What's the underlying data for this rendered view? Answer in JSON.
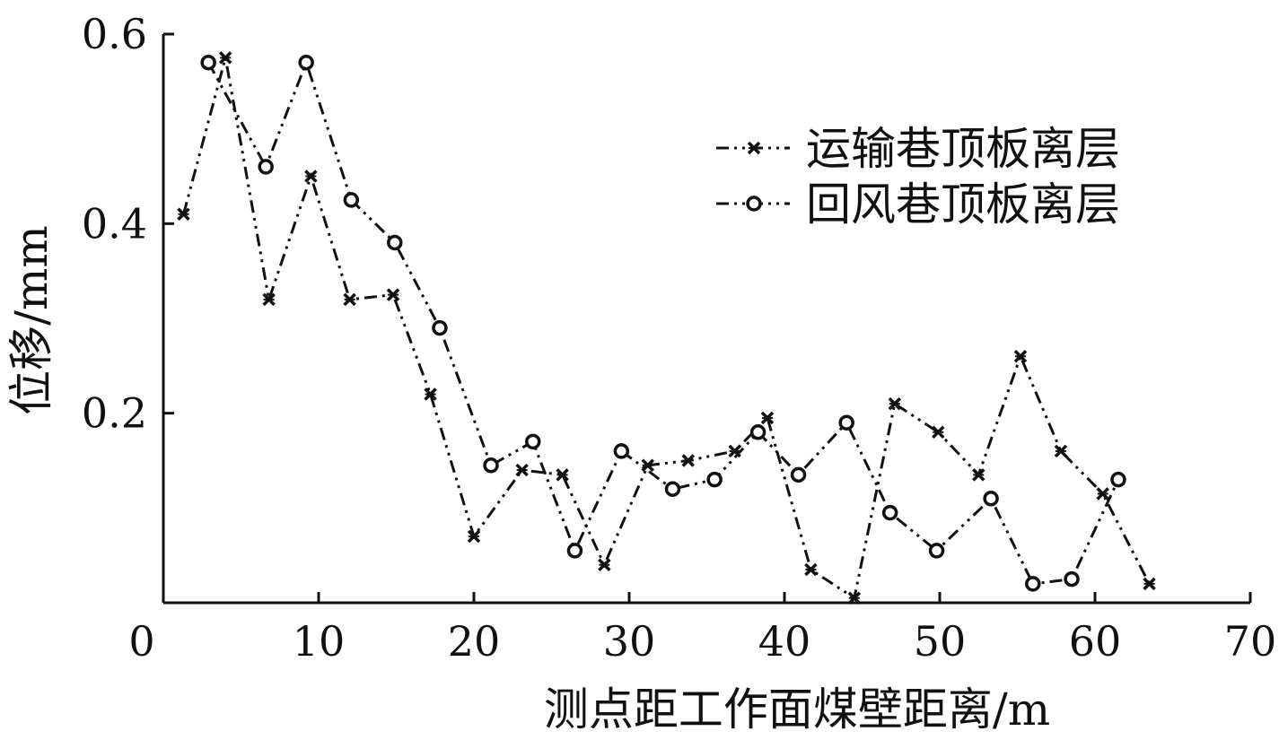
{
  "chart_data": {
    "type": "line",
    "xlabel": "测点距工作面煤壁距离/m",
    "ylabel": "位移/mm",
    "xlim": [
      0,
      70
    ],
    "ylim": [
      0,
      0.6
    ],
    "x_ticks": [
      "0",
      "10",
      "20",
      "30",
      "40",
      "50",
      "60",
      "70"
    ],
    "y_ticks": [
      "0.2",
      "0.4",
      "0.6"
    ],
    "grid": false,
    "legend_position": "top-right",
    "series": [
      {
        "name": "运输巷顶板离层",
        "marker": "x",
        "dash": "dash-dot-dot",
        "x": [
          1.3,
          4.0,
          6.8,
          9.5,
          12.0,
          14.8,
          17.2,
          20.0,
          23.1,
          25.7,
          28.4,
          31.2,
          33.8,
          36.8,
          38.9,
          41.7,
          44.5,
          47.1,
          49.9,
          52.5,
          55.2,
          57.8,
          60.5,
          63.5
        ],
        "y": [
          0.41,
          0.575,
          0.32,
          0.45,
          0.32,
          0.325,
          0.22,
          0.07,
          0.14,
          0.135,
          0.04,
          0.145,
          0.15,
          0.16,
          0.195,
          0.035,
          0.005,
          0.21,
          0.18,
          0.135,
          0.26,
          0.16,
          0.115,
          0.02
        ]
      },
      {
        "name": "回风巷顶板离层",
        "marker": "o",
        "dash": "dash-dot-dot",
        "x": [
          2.9,
          6.6,
          9.2,
          12.1,
          14.9,
          17.8,
          21.1,
          23.8,
          26.5,
          29.5,
          32.8,
          35.5,
          38.3,
          40.9,
          44.0,
          46.8,
          49.8,
          53.3,
          56.0,
          58.5,
          61.5
        ],
        "y": [
          0.57,
          0.46,
          0.57,
          0.425,
          0.38,
          0.29,
          0.145,
          0.17,
          0.055,
          0.16,
          0.12,
          0.13,
          0.18,
          0.135,
          0.19,
          0.095,
          0.055,
          0.11,
          0.02,
          0.025,
          0.13
        ]
      }
    ]
  }
}
